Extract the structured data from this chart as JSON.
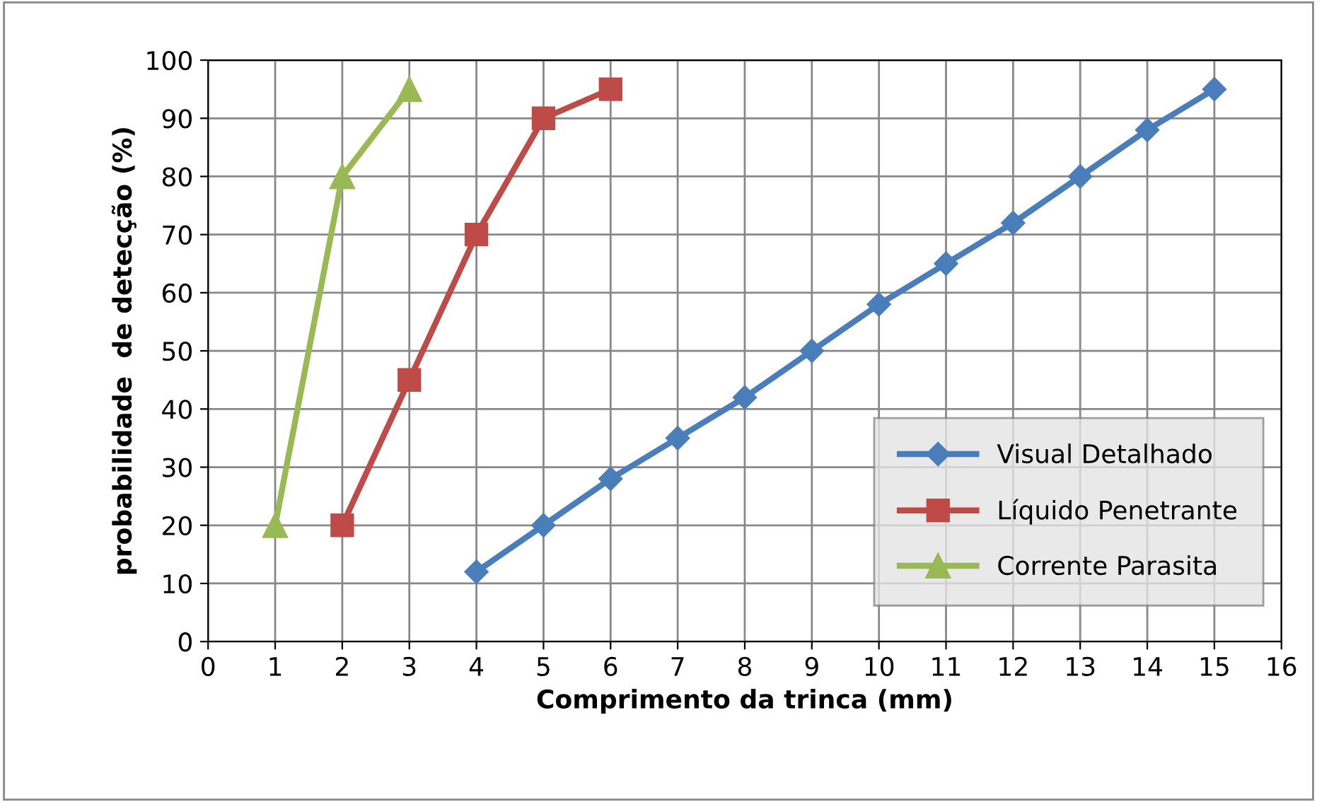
{
  "chart_data": {
    "type": "line",
    "xlabel": "Comprimento da trinca (mm)",
    "ylabel": "probabilidade  de detecção (%)",
    "xlim": [
      0,
      16
    ],
    "xticks": [
      0,
      1,
      2,
      3,
      4,
      5,
      6,
      7,
      8,
      9,
      10,
      11,
      12,
      13,
      14,
      15,
      16
    ],
    "ylim": [
      0,
      100
    ],
    "yticks": [
      0,
      10,
      20,
      30,
      40,
      50,
      60,
      70,
      80,
      90,
      100
    ],
    "grid": true,
    "legend": "lower right",
    "line_style": "solid",
    "series": [
      {
        "name": "Visual Detalhado",
        "color": "#4a7ebb",
        "marker": "diamond",
        "x": [
          4,
          5,
          6,
          7,
          8,
          9,
          10,
          11,
          12,
          13,
          14,
          15
        ],
        "values": [
          12,
          20,
          28,
          35,
          42,
          50,
          58,
          65,
          72,
          80,
          88,
          95
        ]
      },
      {
        "name": "Líquido Penetrante",
        "color": "#be4b48",
        "marker": "square",
        "x": [
          2,
          3,
          4,
          5,
          6
        ],
        "values": [
          20,
          45,
          70,
          90,
          95
        ]
      },
      {
        "name": "Corrente Parasita",
        "color": "#98b954",
        "marker": "triangle",
        "x": [
          1,
          2,
          3
        ],
        "values": [
          20,
          80,
          95
        ]
      }
    ]
  }
}
